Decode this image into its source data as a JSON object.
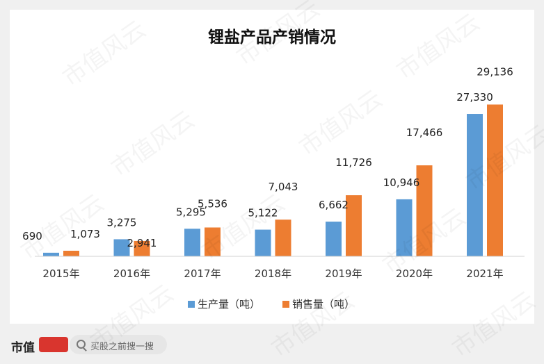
{
  "chart_data": {
    "type": "bar",
    "title": "锂盐产品产销情况",
    "categories": [
      "2015年",
      "2016年",
      "2017年",
      "2018年",
      "2019年",
      "2020年",
      "2021年"
    ],
    "series": [
      {
        "name": "生产量（吨）",
        "color": "#5b9bd5",
        "values": [
          690,
          3275,
          5295,
          5122,
          6662,
          10946,
          27330
        ],
        "labels": [
          "690",
          "3,275",
          "5,295",
          "5,122",
          "6,662",
          "10,946",
          "27,330"
        ]
      },
      {
        "name": "销售量（吨）",
        "color": "#ed7d31",
        "values": [
          1073,
          2941,
          5536,
          7043,
          11726,
          17466,
          29136
        ],
        "labels": [
          "1,073",
          "2,941",
          "5,536",
          "7,043",
          "11,726",
          "17,466",
          "29,136"
        ]
      }
    ],
    "ylim": [
      0,
      30000
    ],
    "grid": false,
    "legend": "bottom"
  },
  "watermark": "市值风云",
  "footer": {
    "brand": "市值",
    "search_placeholder": "买股之前搜一搜"
  }
}
